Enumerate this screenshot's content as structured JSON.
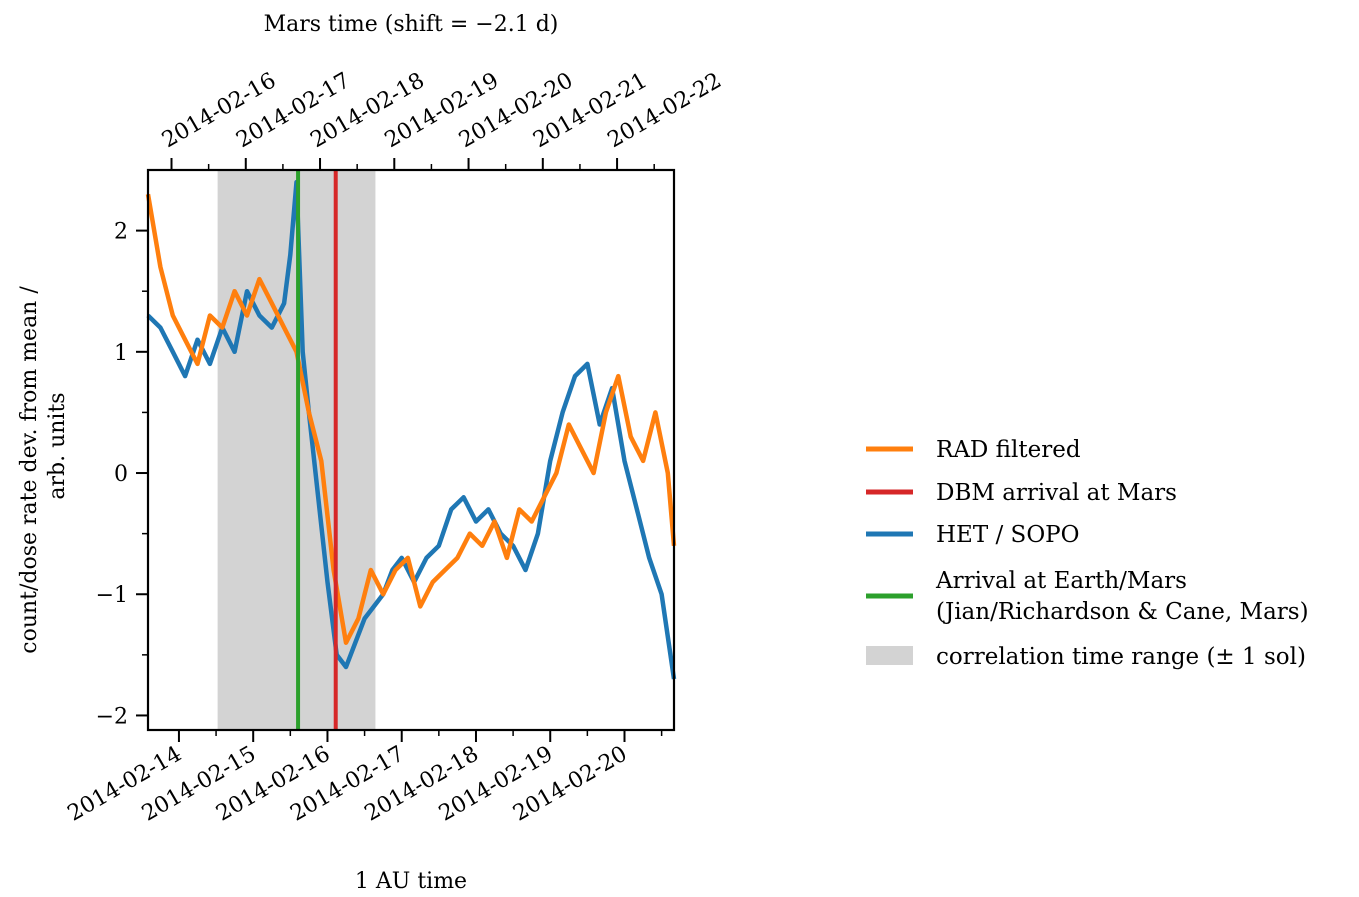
{
  "chart_data": {
    "type": "line",
    "top_title": "Mars time (shift = −2.1 d)",
    "xlabel": "1 AU time",
    "ylabel_line1": "count/dose rate dev. from mean /",
    "ylabel_line2": "arb. units",
    "bottom_axis": {
      "range": [
        "2014-02-13 14:00",
        "2014-02-20 16:00"
      ],
      "tick_labels": [
        "2014-02-14",
        "2014-02-15",
        "2014-02-16",
        "2014-02-17",
        "2014-02-18",
        "2014-02-19",
        "2014-02-20"
      ]
    },
    "top_axis": {
      "tick_labels": [
        "2014-02-16",
        "2014-02-17",
        "2014-02-18",
        "2014-02-19",
        "2014-02-20",
        "2014-02-21",
        "2014-02-22"
      ]
    },
    "y_axis": {
      "range": [
        -2.12,
        2.5
      ],
      "ticks": [
        -2,
        -1,
        0,
        1,
        2
      ],
      "tick_labels": [
        "−2",
        "−1",
        "0",
        "1",
        "2"
      ]
    },
    "grid": false,
    "legend_placement": "right, outside plot",
    "span": {
      "name": "correlation time range (± 1 sol)",
      "x_start": "2014-02-14 12:30",
      "x_end": "2014-02-16 15:30",
      "color": "#d3d3d3"
    },
    "vlines": [
      {
        "name": "Arrival at Earth/Mars (Jian/Richardson & Cane, Mars)",
        "x": "2014-02-15 14:30",
        "color": "#2ca02c",
        "y_range": [
          -2.12,
          2.5
        ]
      },
      {
        "name": "DBM arrival at Mars",
        "x": "2014-02-16 02:40",
        "color": "#d62728",
        "y_range": [
          -2.12,
          2.5
        ]
      }
    ],
    "series": [
      {
        "name": "HET / SOPO",
        "color": "#1f77b4",
        "x": [
          "2014-02-13 14:00",
          "2014-02-13 18:00",
          "2014-02-13 22:00",
          "2014-02-14 02:00",
          "2014-02-14 06:00",
          "2014-02-14 10:00",
          "2014-02-14 14:00",
          "2014-02-14 18:00",
          "2014-02-14 22:00",
          "2014-02-15 02:00",
          "2014-02-15 06:00",
          "2014-02-15 10:00",
          "2014-02-15 12:00",
          "2014-02-15 14:00",
          "2014-02-15 16:00",
          "2014-02-15 18:00",
          "2014-02-15 21:00",
          "2014-02-16 00:00",
          "2014-02-16 03:00",
          "2014-02-16 06:00",
          "2014-02-16 09:00",
          "2014-02-16 12:00",
          "2014-02-16 15:00",
          "2014-02-16 18:00",
          "2014-02-16 21:00",
          "2014-02-17 00:00",
          "2014-02-17 04:00",
          "2014-02-17 08:00",
          "2014-02-17 12:00",
          "2014-02-17 16:00",
          "2014-02-17 20:00",
          "2014-02-18 00:00",
          "2014-02-18 04:00",
          "2014-02-18 08:00",
          "2014-02-18 12:00",
          "2014-02-18 16:00",
          "2014-02-18 20:00",
          "2014-02-19 00:00",
          "2014-02-19 04:00",
          "2014-02-19 08:00",
          "2014-02-19 12:00",
          "2014-02-19 16:00",
          "2014-02-19 20:00",
          "2014-02-20 00:00",
          "2014-02-20 04:00",
          "2014-02-20 08:00",
          "2014-02-20 12:00",
          "2014-02-20 16:00"
        ],
        "values": [
          1.3,
          1.2,
          1.0,
          0.8,
          1.1,
          0.9,
          1.2,
          1.0,
          1.5,
          1.3,
          1.2,
          1.4,
          1.8,
          2.4,
          1.0,
          0.5,
          -0.2,
          -0.9,
          -1.5,
          -1.6,
          -1.4,
          -1.2,
          -1.1,
          -1.0,
          -0.8,
          -0.7,
          -0.9,
          -0.7,
          -0.6,
          -0.3,
          -0.2,
          -0.4,
          -0.3,
          -0.5,
          -0.6,
          -0.8,
          -0.5,
          0.1,
          0.5,
          0.8,
          0.9,
          0.4,
          0.7,
          0.1,
          -0.3,
          -0.7,
          -1.0,
          -1.7
        ]
      },
      {
        "name": "RAD filtered",
        "color": "#ff7f0e",
        "x": [
          "2014-02-13 14:00",
          "2014-02-13 18:00",
          "2014-02-13 22:00",
          "2014-02-14 02:00",
          "2014-02-14 06:00",
          "2014-02-14 10:00",
          "2014-02-14 14:00",
          "2014-02-14 18:00",
          "2014-02-14 22:00",
          "2014-02-15 02:00",
          "2014-02-15 06:00",
          "2014-02-15 10:00",
          "2014-02-15 14:00",
          "2014-02-15 18:00",
          "2014-02-15 22:00",
          "2014-02-16 02:00",
          "2014-02-16 06:00",
          "2014-02-16 10:00",
          "2014-02-16 14:00",
          "2014-02-16 18:00",
          "2014-02-16 22:00",
          "2014-02-17 02:00",
          "2014-02-17 06:00",
          "2014-02-17 10:00",
          "2014-02-17 14:00",
          "2014-02-17 18:00",
          "2014-02-17 22:00",
          "2014-02-18 02:00",
          "2014-02-18 06:00",
          "2014-02-18 10:00",
          "2014-02-18 14:00",
          "2014-02-18 18:00",
          "2014-02-18 22:00",
          "2014-02-19 02:00",
          "2014-02-19 06:00",
          "2014-02-19 10:00",
          "2014-02-19 14:00",
          "2014-02-19 18:00",
          "2014-02-19 22:00",
          "2014-02-20 02:00",
          "2014-02-20 06:00",
          "2014-02-20 10:00",
          "2014-02-20 14:00",
          "2014-02-20 16:00"
        ],
        "values": [
          2.3,
          1.7,
          1.3,
          1.1,
          0.9,
          1.3,
          1.2,
          1.5,
          1.3,
          1.6,
          1.4,
          1.2,
          1.0,
          0.5,
          0.1,
          -0.8,
          -1.4,
          -1.2,
          -0.8,
          -1.0,
          -0.8,
          -0.7,
          -1.1,
          -0.9,
          -0.8,
          -0.7,
          -0.5,
          -0.6,
          -0.4,
          -0.7,
          -0.3,
          -0.4,
          -0.2,
          0.0,
          0.4,
          0.2,
          0.0,
          0.5,
          0.8,
          0.3,
          0.1,
          0.5,
          0.0,
          -0.6
        ]
      }
    ],
    "legend": [
      {
        "label": "RAD filtered",
        "color": "#ff7f0e",
        "kind": "line"
      },
      {
        "label": "DBM arrival at Mars",
        "color": "#d62728",
        "kind": "line"
      },
      {
        "label": "HET / SOPO",
        "color": "#1f77b4",
        "kind": "line"
      },
      {
        "label_line1": "Arrival at Earth/Mars",
        "label_line2": "(Jian/Richardson & Cane, Mars)",
        "color": "#2ca02c",
        "kind": "line"
      },
      {
        "label": "correlation time range (± 1 sol)",
        "color": "#d3d3d3",
        "kind": "patch"
      }
    ]
  }
}
